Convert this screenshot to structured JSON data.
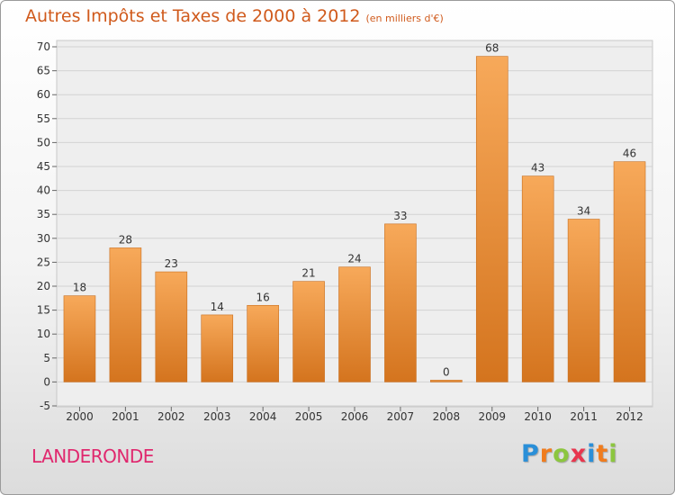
{
  "chart_data": {
    "type": "bar",
    "title": "Autres Impôts et Taxes de 2000 à 2012",
    "subtitle": "(en milliers d'€)",
    "categories": [
      "2000",
      "2001",
      "2002",
      "2003",
      "2004",
      "2005",
      "2006",
      "2007",
      "2008",
      "2009",
      "2010",
      "2011",
      "2012"
    ],
    "values": [
      18,
      28,
      23,
      14,
      16,
      21,
      24,
      33,
      0,
      68,
      43,
      34,
      46
    ],
    "data_labels": [
      "18",
      "28",
      "23",
      "14",
      "16",
      "21",
      "24",
      "33",
      "0",
      "68",
      "43",
      "34",
      "46"
    ],
    "ylim": [
      -5,
      70
    ],
    "y_ticks": [
      -5,
      0,
      5,
      10,
      15,
      20,
      25,
      30,
      35,
      40,
      45,
      50,
      55,
      60,
      65,
      70
    ],
    "grid": true,
    "legend": "none",
    "bar_color": "#f08a30"
  },
  "commune": "LANDERONDE",
  "brand": {
    "letters": [
      "P",
      "r",
      "o",
      "x",
      "i",
      "t",
      "i"
    ],
    "colors": [
      "#2a8fd8",
      "#f07c1e",
      "#8cc63f",
      "#e8364e",
      "#2a8fd8",
      "#f07c1e",
      "#8cc63f"
    ]
  },
  "colors": {
    "title": "#d05a1c",
    "commune": "#e0286e"
  }
}
